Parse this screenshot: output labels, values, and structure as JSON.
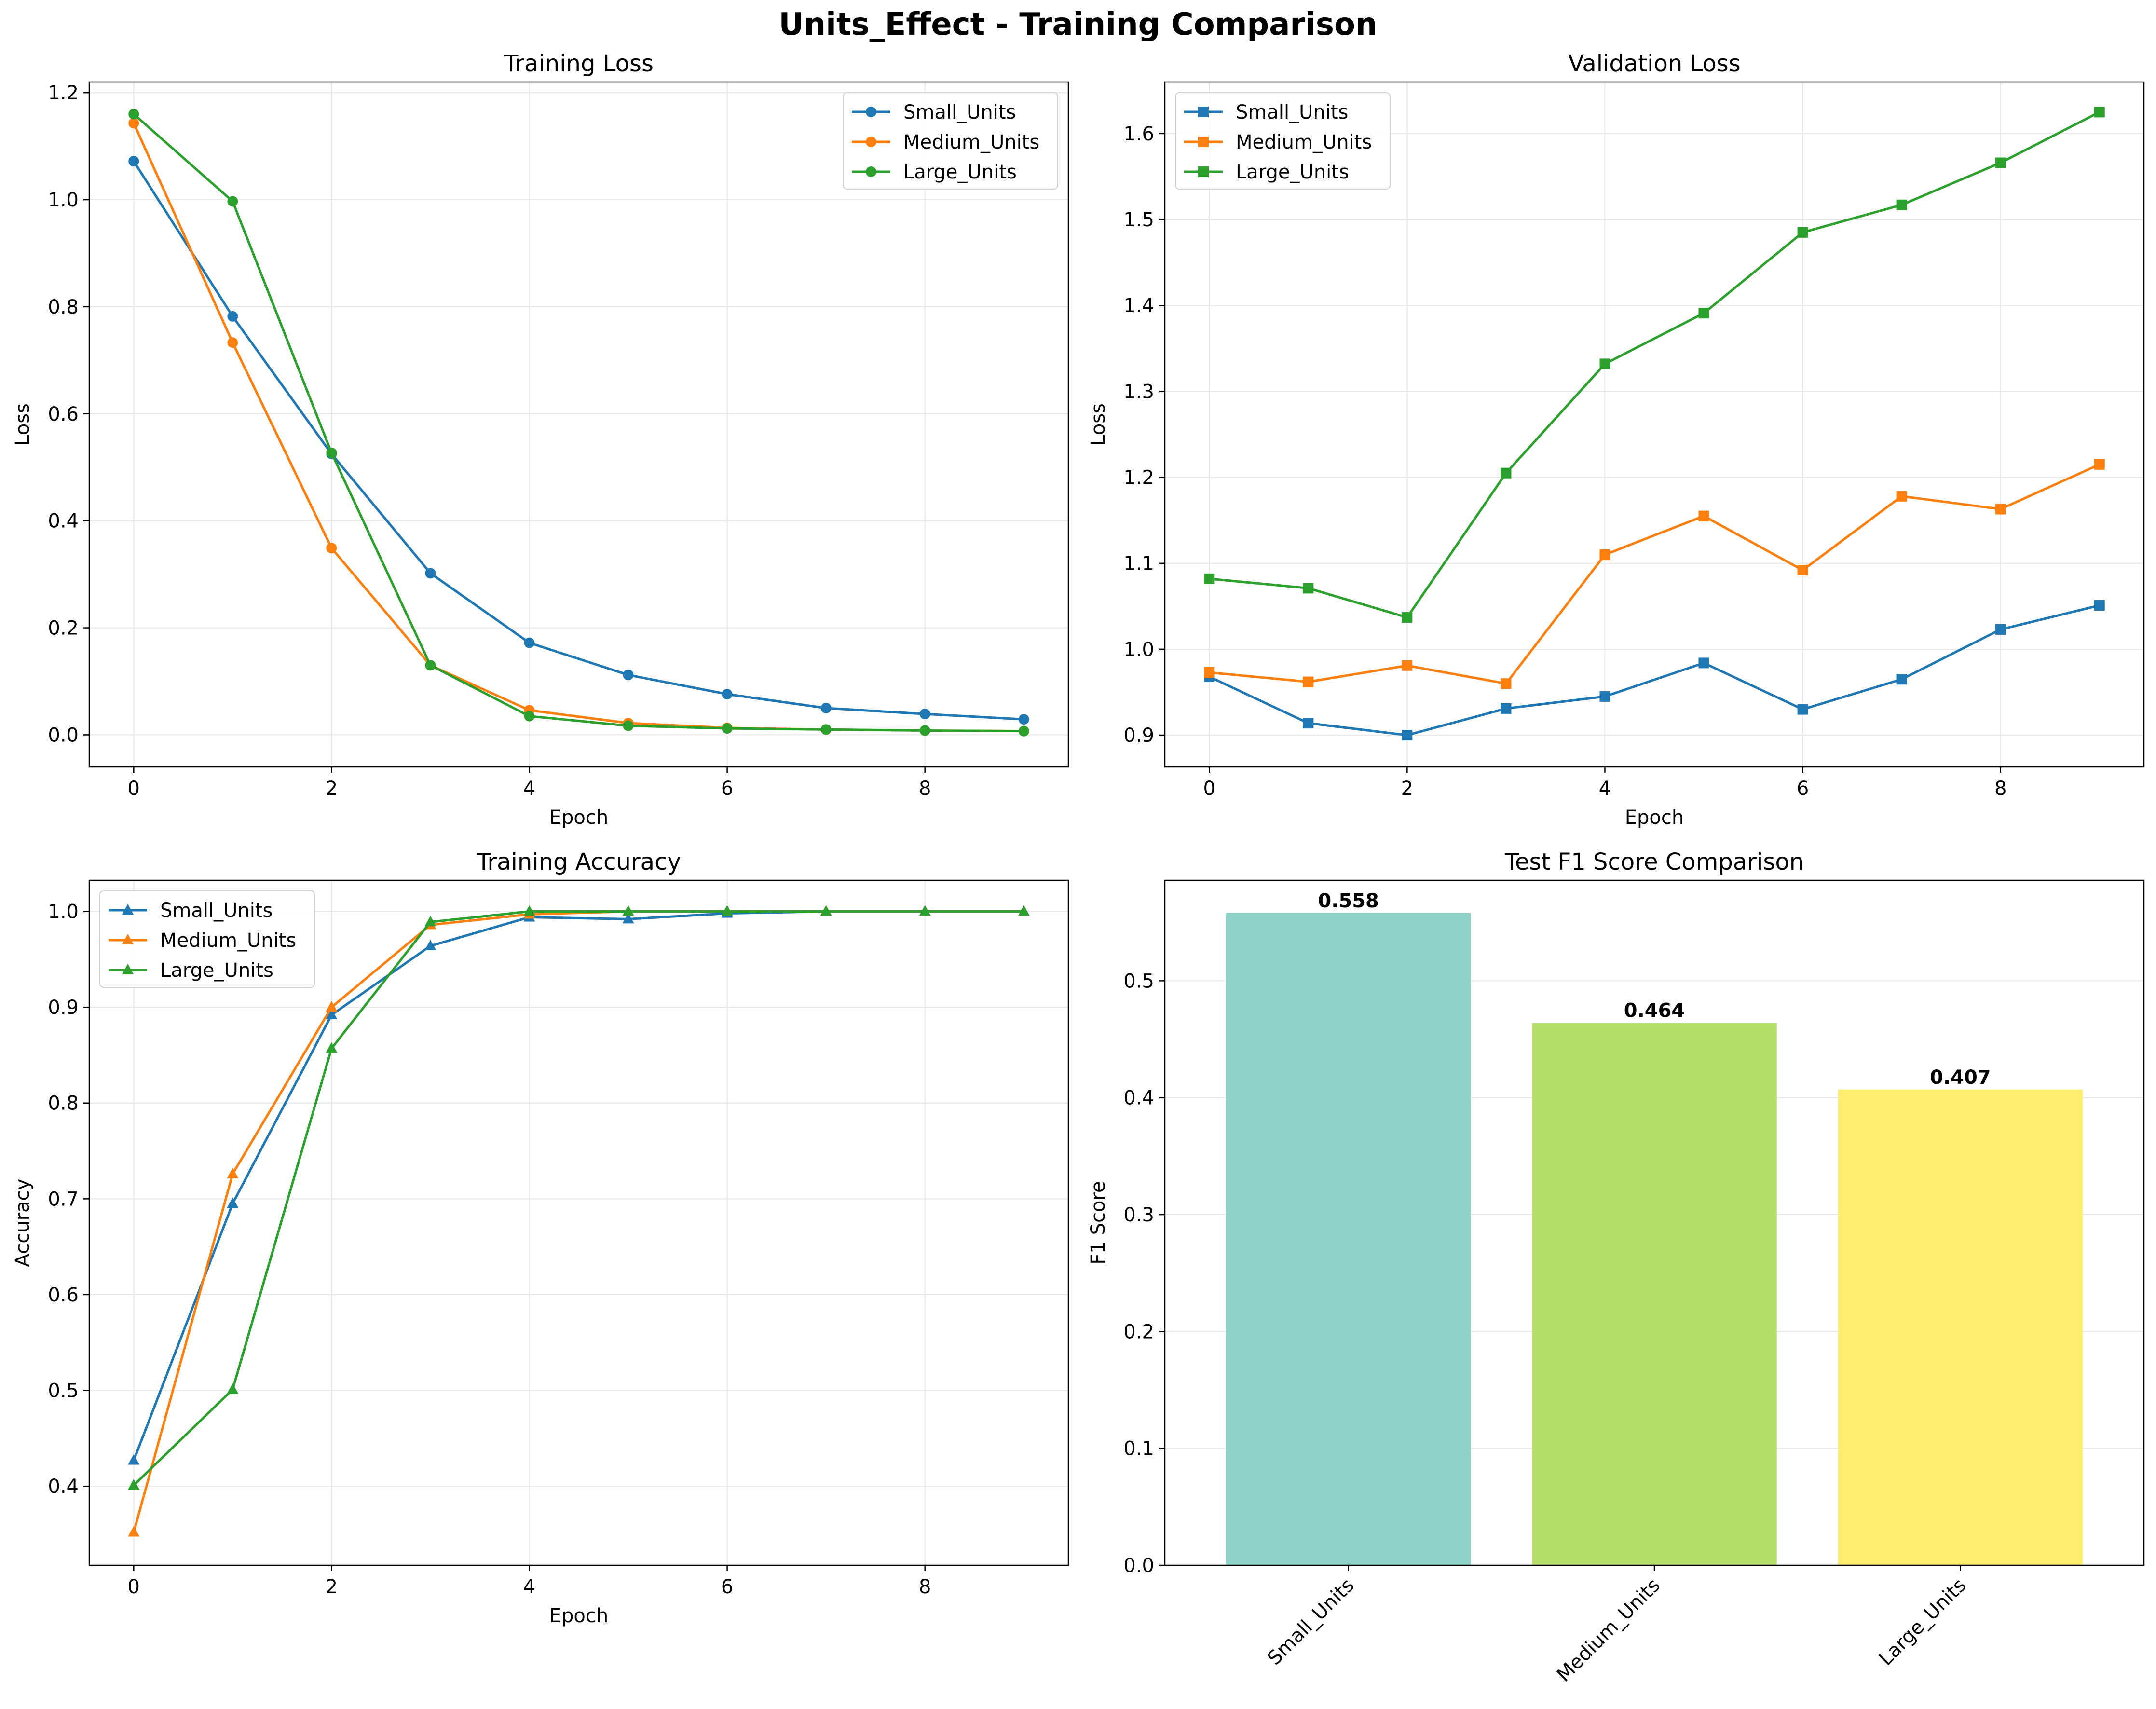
{
  "figure": {
    "title": "Units_Effect - Training Comparison"
  },
  "colors": {
    "small": "#1f77b4",
    "medium": "#ff7f0e",
    "large": "#2ca02c",
    "bar_small": "#8dd3c7",
    "bar_medium": "#b3de69",
    "bar_large": "#ffed6f",
    "grid": "#e6e6e6"
  },
  "chart_data": [
    {
      "type": "line",
      "title": "Training Loss",
      "xlabel": "Epoch",
      "ylabel": "Loss",
      "x": [
        0,
        1,
        2,
        3,
        4,
        5,
        6,
        7,
        8,
        9
      ],
      "xlim": [
        -0.45,
        9.45
      ],
      "ylim": [
        -0.06,
        1.22
      ],
      "xticks": [
        0,
        2,
        4,
        6,
        8
      ],
      "yticks": [
        0.0,
        0.2,
        0.4,
        0.6,
        0.8,
        1.0,
        1.2
      ],
      "grid": true,
      "legend": "top-right",
      "marker": "circle",
      "series": [
        {
          "name": "Small_Units",
          "values": [
            1.072,
            0.782,
            0.525,
            0.302,
            0.172,
            0.112,
            0.076,
            0.05,
            0.039,
            0.029
          ]
        },
        {
          "name": "Medium_Units",
          "values": [
            1.143,
            0.733,
            0.349,
            0.13,
            0.046,
            0.022,
            0.013,
            0.01,
            0.008,
            0.007
          ]
        },
        {
          "name": "Large_Units",
          "values": [
            1.16,
            0.997,
            0.527,
            0.13,
            0.035,
            0.017,
            0.012,
            0.01,
            0.008,
            0.007
          ]
        }
      ]
    },
    {
      "type": "line",
      "title": "Validation Loss",
      "xlabel": "Epoch",
      "ylabel": "Loss",
      "x": [
        0,
        1,
        2,
        3,
        4,
        5,
        6,
        7,
        8,
        9
      ],
      "xlim": [
        -0.45,
        9.45
      ],
      "ylim": [
        0.863,
        1.66
      ],
      "xticks": [
        0,
        2,
        4,
        6,
        8
      ],
      "yticks": [
        0.9,
        1.0,
        1.1,
        1.2,
        1.3,
        1.4,
        1.5,
        1.6
      ],
      "grid": true,
      "legend": "top-left",
      "marker": "square",
      "series": [
        {
          "name": "Small_Units",
          "values": [
            0.968,
            0.914,
            0.9,
            0.931,
            0.945,
            0.984,
            0.93,
            0.965,
            1.023,
            1.051
          ]
        },
        {
          "name": "Medium_Units",
          "values": [
            0.973,
            0.962,
            0.981,
            0.96,
            1.11,
            1.155,
            1.092,
            1.178,
            1.163,
            1.215
          ]
        },
        {
          "name": "Large_Units",
          "values": [
            1.082,
            1.071,
            1.037,
            1.205,
            1.332,
            1.391,
            1.485,
            1.517,
            1.566,
            1.625
          ]
        }
      ]
    },
    {
      "type": "line",
      "title": "Training Accuracy",
      "xlabel": "Epoch",
      "ylabel": "Accuracy",
      "x": [
        0,
        1,
        2,
        3,
        4,
        5,
        6,
        7,
        8,
        9
      ],
      "xlim": [
        -0.45,
        9.45
      ],
      "ylim": [
        0.3175,
        1.0325
      ],
      "xticks": [
        0,
        2,
        4,
        6,
        8
      ],
      "yticks": [
        0.4,
        0.5,
        0.6,
        0.7,
        0.8,
        0.9,
        1.0
      ],
      "grid": true,
      "legend": "top-left",
      "marker": "triangle",
      "series": [
        {
          "name": "Small_Units",
          "values": [
            0.427,
            0.695,
            0.892,
            0.964,
            0.994,
            0.992,
            0.998,
            1.0,
            1.0,
            1.0
          ]
        },
        {
          "name": "Medium_Units",
          "values": [
            0.352,
            0.726,
            0.9,
            0.986,
            0.997,
            1.0,
            1.0,
            1.0,
            1.0,
            1.0
          ]
        },
        {
          "name": "Large_Units",
          "values": [
            0.401,
            0.501,
            0.857,
            0.989,
            1.0,
            1.0,
            1.0,
            1.0,
            1.0,
            1.0
          ]
        }
      ]
    },
    {
      "type": "bar",
      "title": "Test F1 Score Comparison",
      "xlabel": "",
      "ylabel": "F1 Score",
      "categories": [
        "Small_Units",
        "Medium_Units",
        "Large_Units"
      ],
      "values": [
        0.558,
        0.464,
        0.407
      ],
      "value_labels": [
        "0.558",
        "0.464",
        "0.407"
      ],
      "ylim": [
        0,
        0.586
      ],
      "yticks": [
        0.0,
        0.1,
        0.2,
        0.3,
        0.4,
        0.5
      ],
      "grid": true,
      "tick_rotation": "45"
    }
  ]
}
